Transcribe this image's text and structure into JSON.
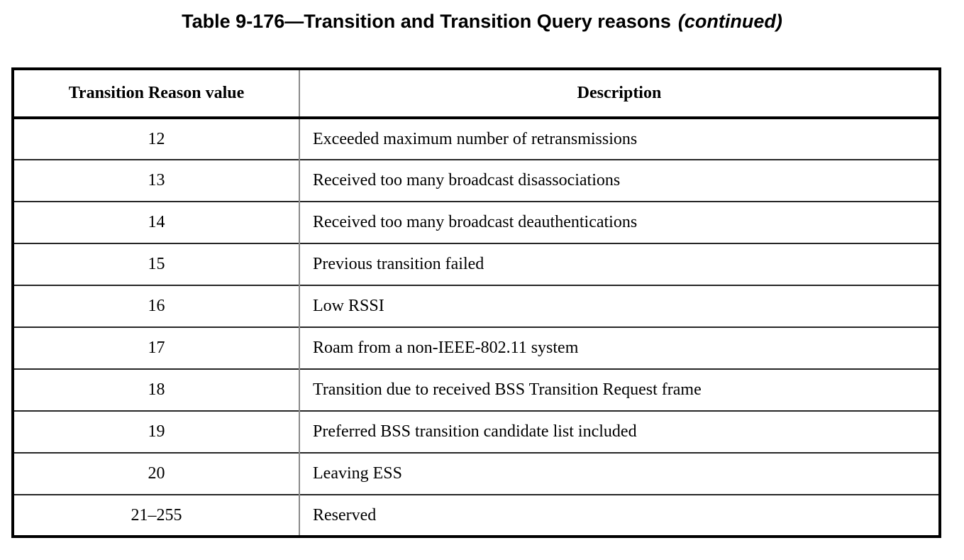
{
  "title": {
    "main": "Table 9-176—Transition and Transition Query reasons",
    "continued": "(continued)"
  },
  "table": {
    "headers": {
      "reason_value": "Transition Reason value",
      "description": "Description"
    },
    "rows": [
      {
        "value": "12",
        "description": "Exceeded maximum number of retransmissions"
      },
      {
        "value": "13",
        "description": "Received too many broadcast disassociations"
      },
      {
        "value": "14",
        "description": "Received too many broadcast deauthentications"
      },
      {
        "value": "15",
        "description": "Previous transition failed"
      },
      {
        "value": "16",
        "description": "Low RSSI"
      },
      {
        "value": "17",
        "description": "Roam from a non-IEEE-802.11 system"
      },
      {
        "value": "18",
        "description": "Transition due to received BSS Transition Request frame"
      },
      {
        "value": "19",
        "description": "Preferred BSS transition candidate list included"
      },
      {
        "value": "20",
        "description": "Leaving ESS"
      },
      {
        "value": "21–255",
        "description": "Reserved"
      }
    ]
  },
  "colors": {
    "text": "#000000",
    "background": "#ffffff",
    "outer_border": "#000000",
    "column_divider": "#8a8a8a",
    "row_divider": "#262626"
  }
}
